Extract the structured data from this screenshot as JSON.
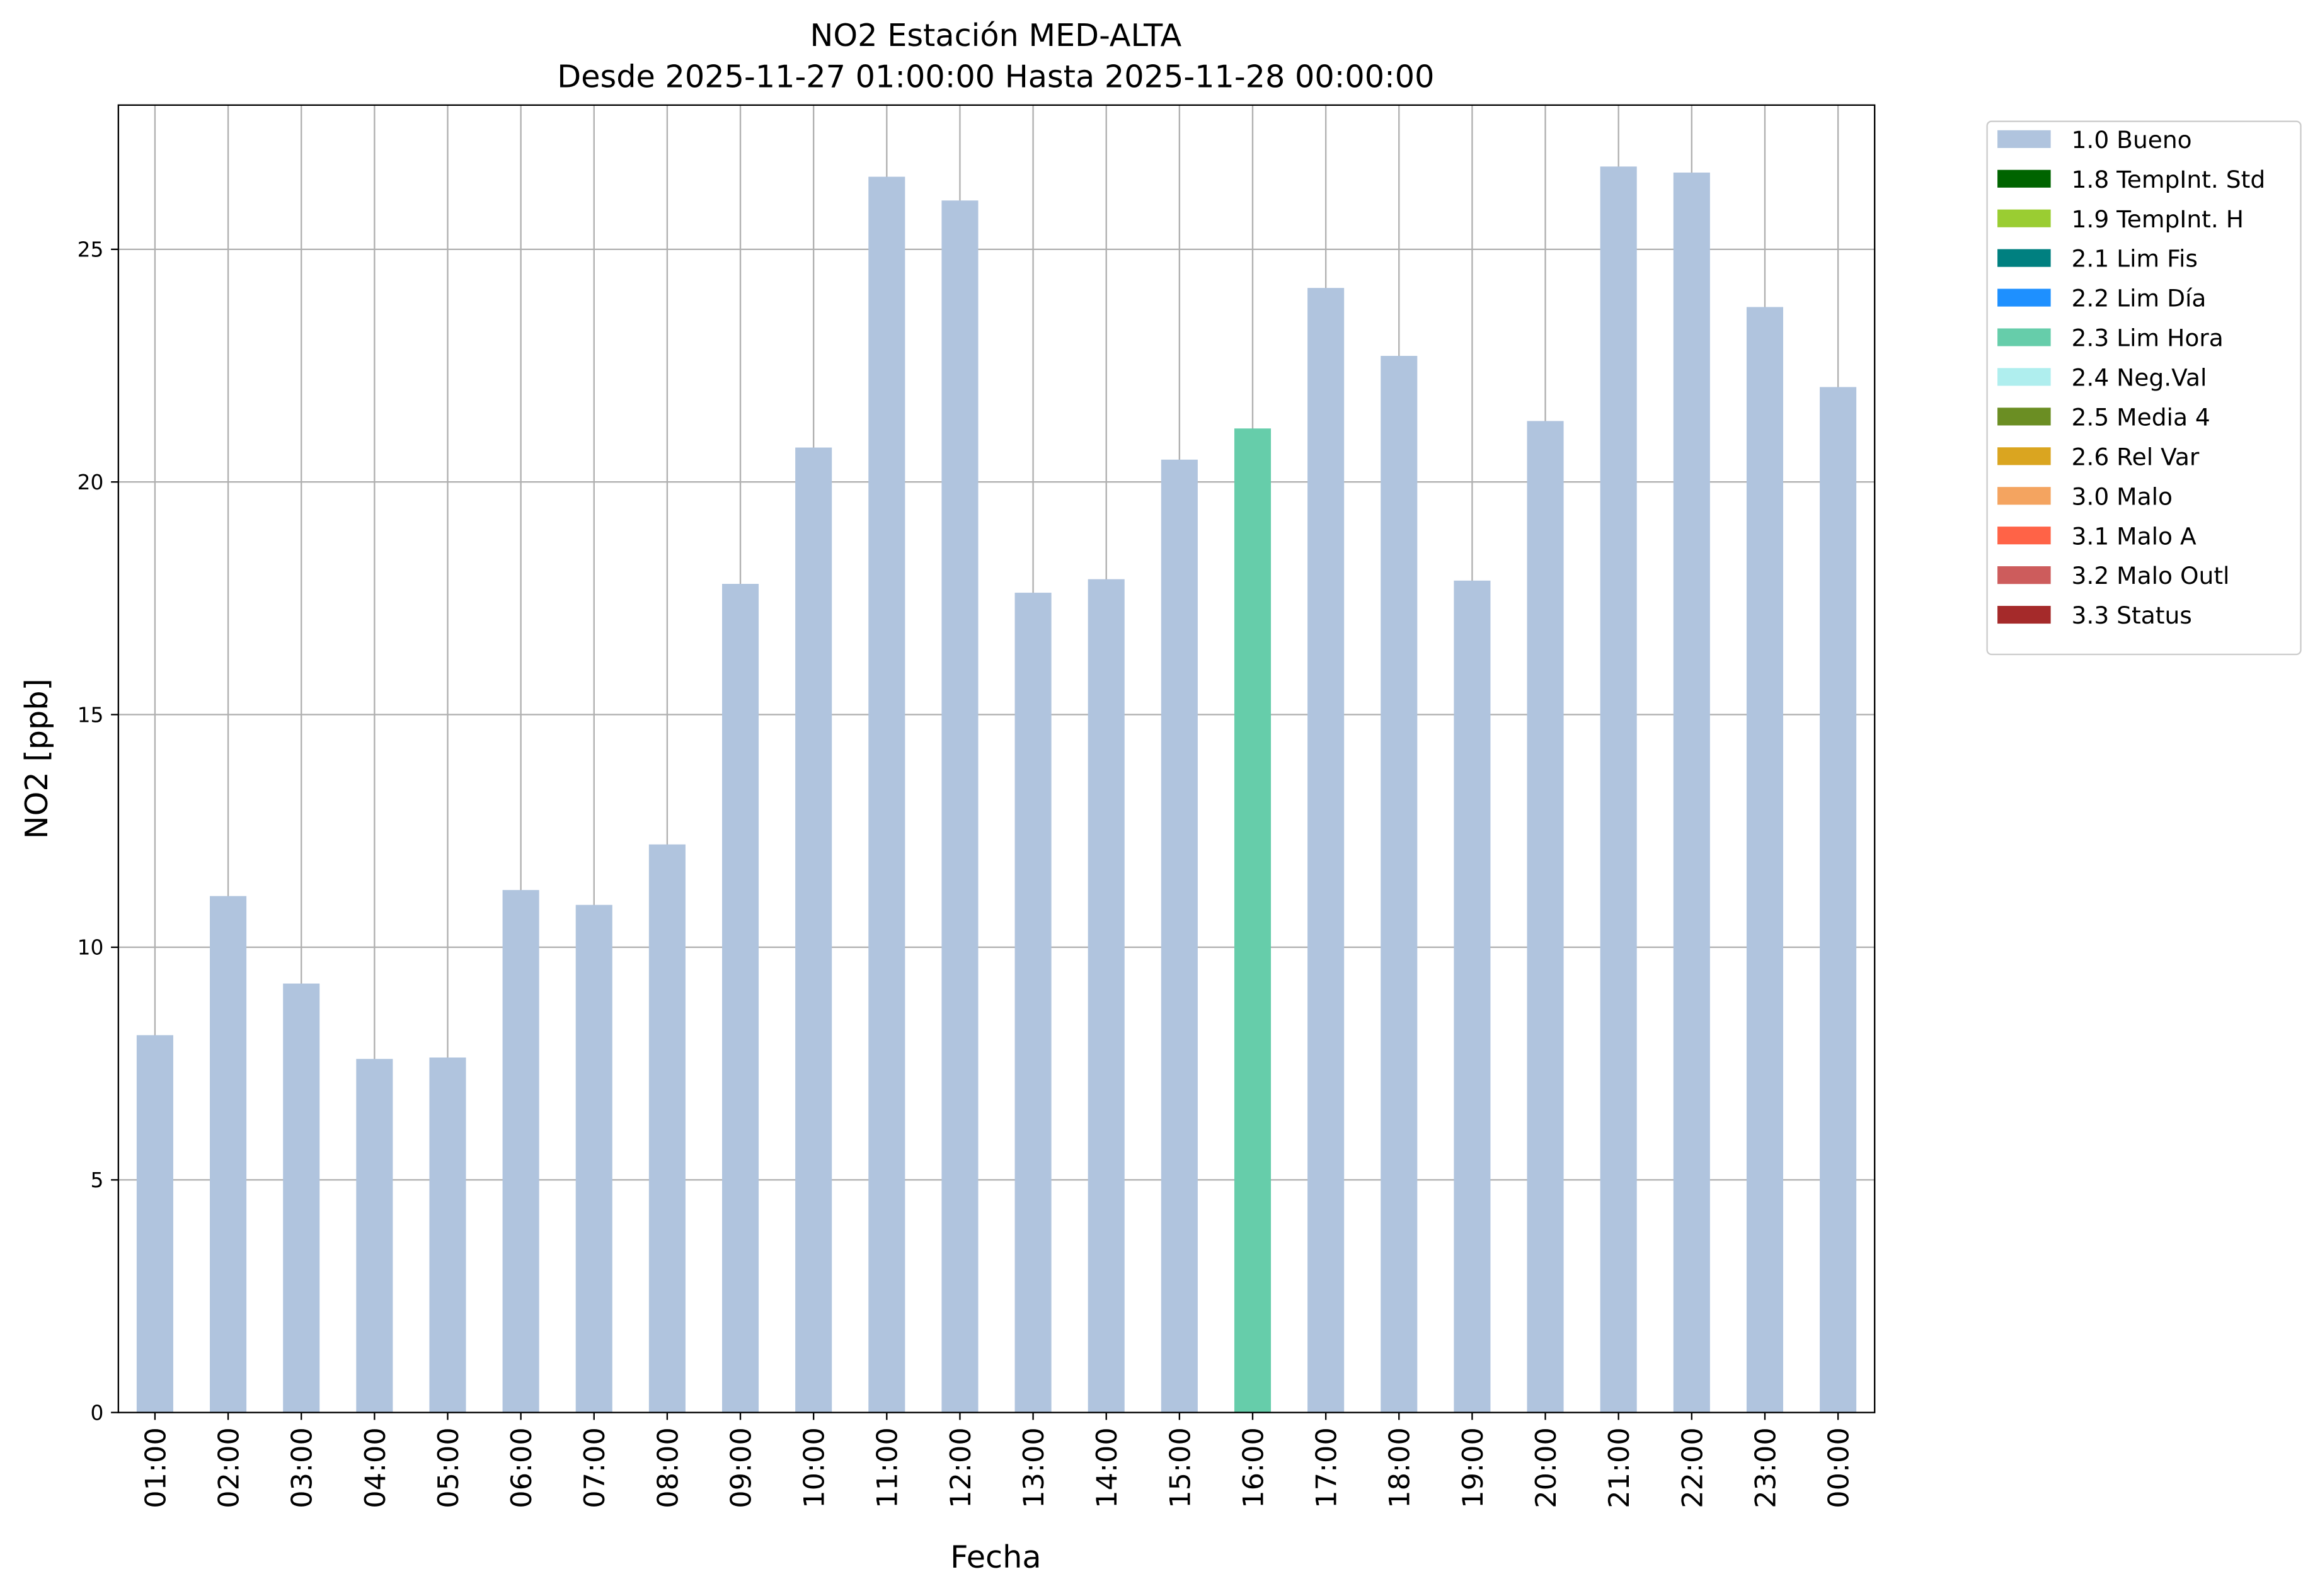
{
  "chart_data": {
    "type": "stacked_bar",
    "title": "NO2 Estación MED-ALTA",
    "subtitle": "Desde 2025-11-27 01:00:00 Hasta 2025-11-28 00:00:00",
    "x_label": "Fecha",
    "y_label": "NO2 [ppb]",
    "categories": [
      "01:00",
      "02:00",
      "03:00",
      "04:00",
      "05:00",
      "06:00",
      "07:00",
      "08:00",
      "09:00",
      "10:00",
      "11:00",
      "12:00",
      "13:00",
      "14:00",
      "15:00",
      "16:00",
      "17:00",
      "18:00",
      "19:00",
      "20:00",
      "21:00",
      "22:00",
      "23:00",
      "00:00"
    ],
    "series": [
      {
        "name": "1.0 Bueno",
        "color": "#b0c4de",
        "values": [
          8.11,
          11.1,
          9.22,
          7.6,
          7.63,
          11.23,
          10.91,
          12.21,
          17.81,
          20.74,
          26.56,
          26.05,
          17.62,
          17.91,
          20.48,
          null,
          24.17,
          22.71,
          17.88,
          21.31,
          26.78,
          26.65,
          23.76,
          22.04
        ]
      },
      {
        "name": "1.8 TempInt. Std",
        "color": "#006400",
        "values": [
          null,
          null,
          null,
          null,
          null,
          null,
          null,
          null,
          null,
          null,
          null,
          null,
          null,
          null,
          null,
          null,
          null,
          null,
          null,
          null,
          null,
          null,
          null,
          null
        ]
      },
      {
        "name": "1.9 TempInt. H",
        "color": "#9acd32",
        "values": [
          null,
          null,
          null,
          null,
          null,
          null,
          null,
          null,
          null,
          null,
          null,
          null,
          null,
          null,
          null,
          null,
          null,
          null,
          null,
          null,
          null,
          null,
          null,
          null
        ]
      },
      {
        "name": "2.1 Lim Fis",
        "color": "#008080",
        "values": [
          null,
          null,
          null,
          null,
          null,
          null,
          null,
          null,
          null,
          null,
          null,
          null,
          null,
          null,
          null,
          null,
          null,
          null,
          null,
          null,
          null,
          null,
          null,
          null
        ]
      },
      {
        "name": "2.2 Lim Día",
        "color": "#1e90ff",
        "values": [
          null,
          null,
          null,
          null,
          null,
          null,
          null,
          null,
          null,
          null,
          null,
          null,
          null,
          null,
          null,
          null,
          null,
          null,
          null,
          null,
          null,
          null,
          null,
          null
        ]
      },
      {
        "name": "2.3 Lim Hora",
        "color": "#66cdaa",
        "values": [
          null,
          null,
          null,
          null,
          null,
          null,
          null,
          null,
          null,
          null,
          null,
          null,
          null,
          null,
          null,
          21.15,
          null,
          null,
          null,
          null,
          null,
          null,
          null,
          null
        ]
      },
      {
        "name": "2.4 Neg.Val",
        "color": "#afeeee",
        "values": [
          null,
          null,
          null,
          null,
          null,
          null,
          null,
          null,
          null,
          null,
          null,
          null,
          null,
          null,
          null,
          null,
          null,
          null,
          null,
          null,
          null,
          null,
          null,
          null
        ]
      },
      {
        "name": "2.5 Media 4",
        "color": "#6b8e23",
        "values": [
          null,
          null,
          null,
          null,
          null,
          null,
          null,
          null,
          null,
          null,
          null,
          null,
          null,
          null,
          null,
          null,
          null,
          null,
          null,
          null,
          null,
          null,
          null,
          null
        ]
      },
      {
        "name": "2.6 Rel Var",
        "color": "#daa520",
        "values": [
          null,
          null,
          null,
          null,
          null,
          null,
          null,
          null,
          null,
          null,
          null,
          null,
          null,
          null,
          null,
          null,
          null,
          null,
          null,
          null,
          null,
          null,
          null,
          null
        ]
      },
      {
        "name": "3.0 Malo",
        "color": "#f4a460",
        "values": [
          null,
          null,
          null,
          null,
          null,
          null,
          null,
          null,
          null,
          null,
          null,
          null,
          null,
          null,
          null,
          null,
          null,
          null,
          null,
          null,
          null,
          null,
          null,
          null
        ]
      },
      {
        "name": "3.1 Malo A",
        "color": "#ff6347",
        "values": [
          null,
          null,
          null,
          null,
          null,
          null,
          null,
          null,
          null,
          null,
          null,
          null,
          null,
          null,
          null,
          null,
          null,
          null,
          null,
          null,
          null,
          null,
          null,
          null
        ]
      },
      {
        "name": "3.2 Malo Outl",
        "color": "#cd5c5c",
        "values": [
          null,
          null,
          null,
          null,
          null,
          null,
          null,
          null,
          null,
          null,
          null,
          null,
          null,
          null,
          null,
          null,
          null,
          null,
          null,
          null,
          null,
          null,
          null,
          null
        ]
      },
      {
        "name": "3.3 Status",
        "color": "#a52a2a",
        "values": [
          null,
          null,
          null,
          null,
          null,
          null,
          null,
          null,
          null,
          null,
          null,
          null,
          null,
          null,
          null,
          null,
          null,
          null,
          null,
          null,
          null,
          null,
          null,
          null
        ]
      }
    ],
    "ylim": [
      0,
      28.1
    ],
    "yticks": [
      0,
      5,
      10,
      15,
      20,
      25
    ],
    "grid": true,
    "legend": "outside right"
  }
}
